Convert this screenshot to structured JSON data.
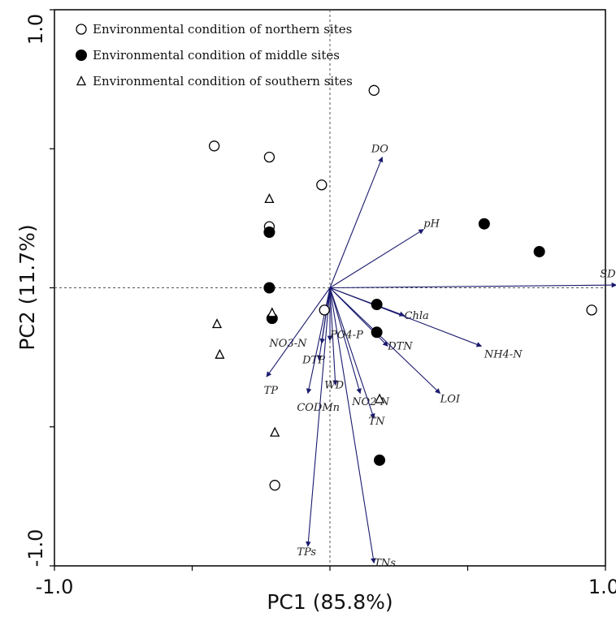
{
  "chart_data": {
    "type": "scatter",
    "subtype": "pca-biplot",
    "xlabel": "PC1 (85.8%)",
    "ylabel": "PC2 (11.7%)",
    "xlim": [
      -1.0,
      1.0
    ],
    "ylim": [
      -1.0,
      1.0
    ],
    "x_tick_labels": [
      "-1.0",
      "1.0"
    ],
    "y_tick_labels": [
      "-1.0",
      "1.0"
    ],
    "reference_lines": "dashed lines at x=0 and y=0",
    "legend_position": "top-left",
    "legend": [
      {
        "symbol": "open-circle",
        "label": "Environmental condition of northern sites"
      },
      {
        "symbol": "filled-circle",
        "label": "Environmental condition of middle sites"
      },
      {
        "symbol": "open-triangle",
        "label": "Environmental condition of southern sites"
      }
    ],
    "series": [
      {
        "name": "Environmental condition of northern sites",
        "symbol": "open-circle",
        "points": [
          {
            "x": 0.16,
            "y": 0.71
          },
          {
            "x": -0.42,
            "y": 0.51
          },
          {
            "x": -0.22,
            "y": 0.47
          },
          {
            "x": -0.03,
            "y": 0.37
          },
          {
            "x": -0.22,
            "y": 0.22
          },
          {
            "x": -0.02,
            "y": -0.08
          },
          {
            "x": -0.2,
            "y": -0.71
          },
          {
            "x": 0.95,
            "y": -0.08
          }
        ]
      },
      {
        "name": "Environmental condition of middle sites",
        "symbol": "filled-circle",
        "points": [
          {
            "x": -0.22,
            "y": 0.2
          },
          {
            "x": -0.22,
            "y": 0.0
          },
          {
            "x": -0.21,
            "y": -0.11
          },
          {
            "x": 0.17,
            "y": -0.06
          },
          {
            "x": 0.17,
            "y": -0.16
          },
          {
            "x": 0.56,
            "y": 0.23
          },
          {
            "x": 0.76,
            "y": 0.13
          },
          {
            "x": 0.18,
            "y": -0.62
          }
        ]
      },
      {
        "name": "Environmental condition of southern sites",
        "symbol": "open-triangle",
        "points": [
          {
            "x": -0.22,
            "y": 0.32
          },
          {
            "x": -0.21,
            "y": -0.09
          },
          {
            "x": -0.41,
            "y": -0.13
          },
          {
            "x": -0.4,
            "y": -0.24
          },
          {
            "x": -0.2,
            "y": -0.52
          },
          {
            "x": 0.18,
            "y": -0.4
          }
        ]
      }
    ],
    "vectors": [
      {
        "label": "DO",
        "x": 0.19,
        "y": 0.47,
        "label_dx": -0.04,
        "label_dy": 0.03
      },
      {
        "label": "pH",
        "x": 0.34,
        "y": 0.21,
        "label_dx": 0.0,
        "label_dy": 0.02
      },
      {
        "label": "SD",
        "x": 1.04,
        "y": 0.01,
        "label_dx": -0.06,
        "label_dy": 0.04
      },
      {
        "label": "Chla",
        "x": 0.27,
        "y": -0.1,
        "label_dx": 0.0,
        "label_dy": 0.0
      },
      {
        "label": "NH4-N",
        "x": 0.55,
        "y": -0.21,
        "label_dx": 0.01,
        "label_dy": -0.03
      },
      {
        "label": "DTN",
        "x": 0.21,
        "y": -0.21,
        "label_dx": 0.0,
        "label_dy": 0.0
      },
      {
        "label": "LOI",
        "x": 0.4,
        "y": -0.38,
        "label_dx": 0.0,
        "label_dy": -0.02
      },
      {
        "label": "NO2-N",
        "x": 0.11,
        "y": -0.38,
        "label_dx": -0.03,
        "label_dy": -0.03
      },
      {
        "label": "TN",
        "x": 0.16,
        "y": -0.47,
        "label_dx": -0.02,
        "label_dy": -0.01
      },
      {
        "label": "WD",
        "x": 0.02,
        "y": -0.35,
        "label_dx": -0.04,
        "label_dy": 0.0
      },
      {
        "label": "PO4-P",
        "x": 0.0,
        "y": -0.19,
        "label_dx": 0.0,
        "label_dy": 0.02
      },
      {
        "label": "NO3-N",
        "x": -0.03,
        "y": -0.2,
        "label_dx": -0.19,
        "label_dy": 0.0
      },
      {
        "label": "DTP",
        "x": -0.04,
        "y": -0.26,
        "label_dx": -0.06,
        "label_dy": 0.0
      },
      {
        "label": "CODMn",
        "x": -0.08,
        "y": -0.38,
        "label_dx": -0.04,
        "label_dy": -0.05
      },
      {
        "label": "TP",
        "x": -0.23,
        "y": -0.32,
        "label_dx": -0.01,
        "label_dy": -0.05
      },
      {
        "label": "TPs",
        "x": -0.08,
        "y": -0.93,
        "label_dx": -0.04,
        "label_dy": -0.02
      },
      {
        "label": "TNs",
        "x": 0.16,
        "y": -0.99,
        "label_dx": 0.0,
        "label_dy": 0.0
      }
    ],
    "colors": {
      "vector": "#1a1a6e",
      "frame": "#000000",
      "reference_line": "#555555"
    }
  }
}
